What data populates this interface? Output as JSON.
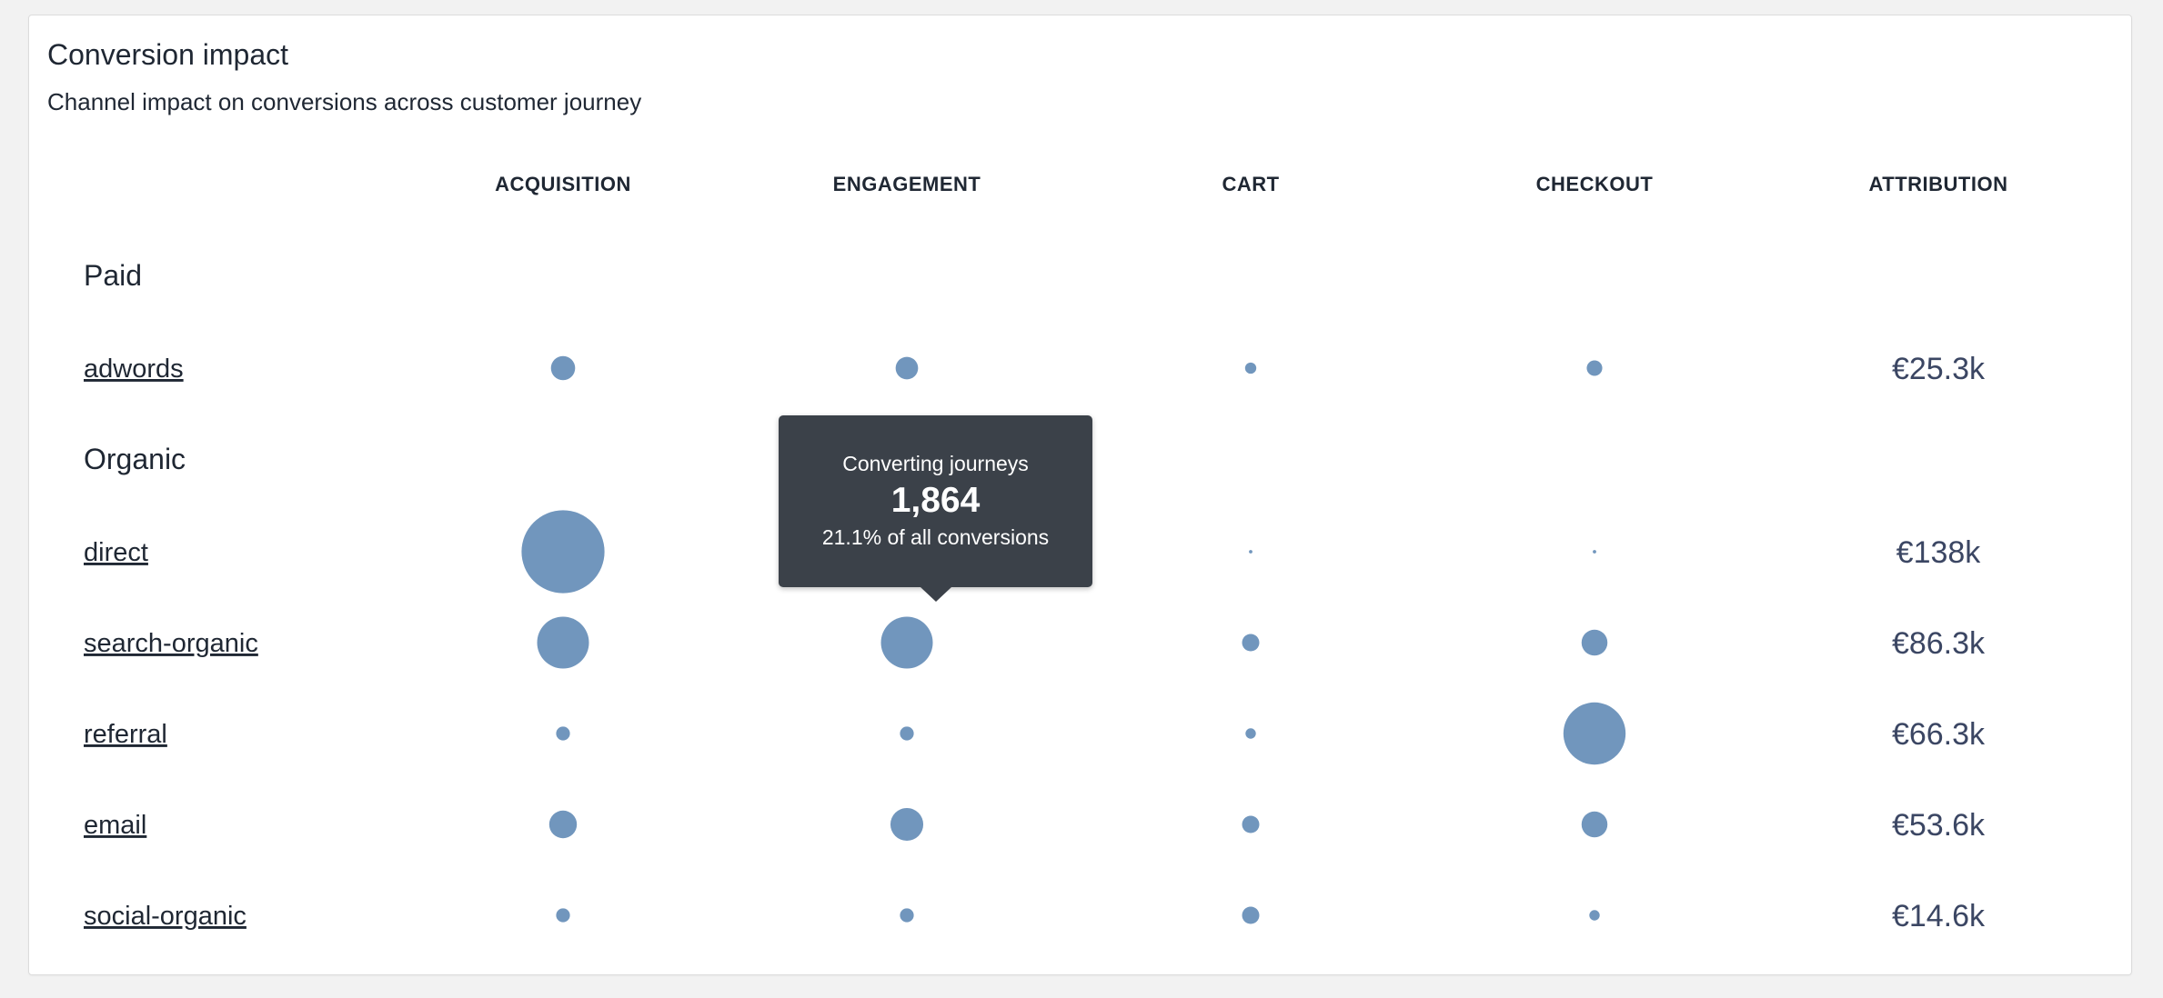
{
  "card": {
    "title": "Conversion impact",
    "subtitle": "Channel impact on conversions across customer journey"
  },
  "tooltip": {
    "label": "Converting journeys",
    "value": "1,864",
    "share": "21.1% of all conversions"
  },
  "colors": {
    "bubble": "#7196bd",
    "tooltip_bg": "#3b4149",
    "attribution_text": "#3b4663"
  },
  "chart_data": {
    "type": "scatter",
    "encoding": "bubble size = relative channel impact per journey stage",
    "columns": [
      "ACQUISITION",
      "ENGAGEMENT",
      "CART",
      "CHECKOUT",
      "ATTRIBUTION"
    ],
    "stages": [
      "ACQUISITION",
      "ENGAGEMENT",
      "CART",
      "CHECKOUT"
    ],
    "groups": [
      {
        "name": "Paid",
        "channels": [
          {
            "name": "adwords",
            "impact": [
              14,
              13,
              6.5,
              9
            ],
            "attribution": "€25.3k"
          }
        ]
      },
      {
        "name": "Organic",
        "channels": [
          {
            "name": "direct",
            "impact": [
              48,
              2,
              2,
              2
            ],
            "attribution": "€138k"
          },
          {
            "name": "search-organic",
            "impact": [
              30,
              30,
              10,
              15
            ],
            "attribution": "€86.3k"
          },
          {
            "name": "referral",
            "impact": [
              8,
              8,
              6,
              36
            ],
            "attribution": "€66.3k"
          },
          {
            "name": "email",
            "impact": [
              16,
              19,
              10,
              15
            ],
            "attribution": "€53.6k"
          },
          {
            "name": "social-organic",
            "impact": [
              8,
              8,
              10,
              6
            ],
            "attribution": "€14.6k"
          }
        ]
      }
    ],
    "highlighted": {
      "channel": "direct",
      "stage": "ENGAGEMENT"
    }
  }
}
